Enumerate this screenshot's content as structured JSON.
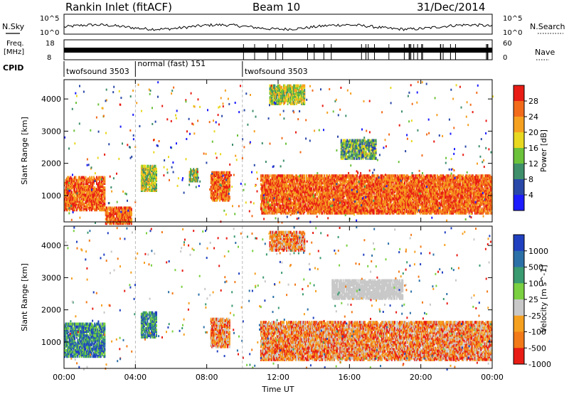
{
  "header": {
    "station": "Rankin Inlet (fitACF)",
    "beam": "Beam 10",
    "date": "31/Dec/2014"
  },
  "strips": {
    "nsky_label": "N.Sky",
    "nsky_ticks": [
      "10^5",
      "10^0"
    ],
    "nsearch_label": "N.Search",
    "nsearch_ticks": [
      "10^5",
      "10^0"
    ],
    "freq_label_top": "Freq.",
    "freq_label_bottom": "[MHz]",
    "freq_ticks": [
      "18",
      "8"
    ],
    "nave_label": "Nave",
    "nave_ticks": [
      "60",
      "0"
    ],
    "cpid_label": "CPID",
    "cpid_segments": [
      {
        "label": "twofsound 3503",
        "start_hour": 0.0,
        "end_hour": 4.0
      },
      {
        "label": "normal (fast) 151",
        "start_hour": 4.0,
        "end_hour": 10.0
      },
      {
        "label": "twofsound 3503",
        "start_hour": 10.0,
        "end_hour": 24.0
      }
    ]
  },
  "chart_data": [
    {
      "type": "heatmap",
      "quantity": "Power",
      "ylabel": "Slant Range [km]",
      "xlim_hours": [
        0,
        24
      ],
      "ylim_km": [
        180,
        4600
      ],
      "yticks": [
        1000,
        2000,
        3000,
        4000
      ],
      "colorbar_label": "Power [dB]",
      "colorbar_ticks": [
        "4",
        "8",
        "12",
        "16",
        "20",
        "24",
        "28"
      ],
      "colors": [
        "#1c1cff",
        "#2a48a8",
        "#3e8f6a",
        "#6cc23a",
        "#e8d820",
        "#f6a020",
        "#f26b1b",
        "#e81c14"
      ],
      "regions": [
        {
          "x0": 0.0,
          "x1": 2.3,
          "y0": 600,
          "y1": 1650,
          "level": "high"
        },
        {
          "x0": 2.3,
          "x1": 3.8,
          "y0": 180,
          "y1": 700,
          "level": "high"
        },
        {
          "x0": 4.3,
          "x1": 5.2,
          "y0": 1200,
          "y1": 2000,
          "level": "mid"
        },
        {
          "x0": 7.0,
          "x1": 7.5,
          "y0": 1500,
          "y1": 1900,
          "level": "mid"
        },
        {
          "x0": 8.2,
          "x1": 9.3,
          "y0": 900,
          "y1": 1800,
          "level": "high"
        },
        {
          "x0": 11.0,
          "x1": 24.0,
          "y0": 500,
          "y1": 1700,
          "level": "high"
        },
        {
          "x0": 11.5,
          "x1": 13.5,
          "y0": 3900,
          "y1": 4500,
          "level": "mid"
        },
        {
          "x0": 15.5,
          "x1": 17.5,
          "y0": 2200,
          "y1": 2800,
          "level": "low"
        }
      ]
    },
    {
      "type": "heatmap",
      "quantity": "Velocity",
      "xlabel": "Time UT",
      "ylabel": "Slant Range [km]",
      "xlim_hours": [
        0,
        24
      ],
      "ylim_km": [
        180,
        4600
      ],
      "xticks": [
        "00:00",
        "04:00",
        "08:00",
        "12:00",
        "16:00",
        "20:00",
        "00:00"
      ],
      "yticks": [
        1000,
        2000,
        3000,
        4000
      ],
      "colorbar_label": "Velocity [m s^-1]",
      "colorbar_ticks": [
        "1000",
        "500",
        "100",
        "25",
        "-25",
        "-100",
        "-500",
        "-1000"
      ],
      "colors": [
        "#2040c0",
        "#2c70a8",
        "#3a9a70",
        "#7ad040",
        "#c8c8c8",
        "#f6a020",
        "#f27a18",
        "#e81c14"
      ],
      "regions": [
        {
          "x0": 0.0,
          "x1": 2.3,
          "y0": 600,
          "y1": 1650,
          "level": "pos"
        },
        {
          "x0": 4.3,
          "x1": 5.2,
          "y0": 1200,
          "y1": 2000,
          "level": "pos"
        },
        {
          "x0": 8.2,
          "x1": 9.3,
          "y0": 900,
          "y1": 1800,
          "level": "neg"
        },
        {
          "x0": 11.0,
          "x1": 24.0,
          "y0": 500,
          "y1": 1700,
          "level": "neg"
        },
        {
          "x0": 15.0,
          "x1": 19.0,
          "y0": 2400,
          "y1": 3000,
          "level": "zero"
        },
        {
          "x0": 11.5,
          "x1": 13.5,
          "y0": 3900,
          "y1": 4500,
          "level": "neg"
        }
      ]
    }
  ]
}
